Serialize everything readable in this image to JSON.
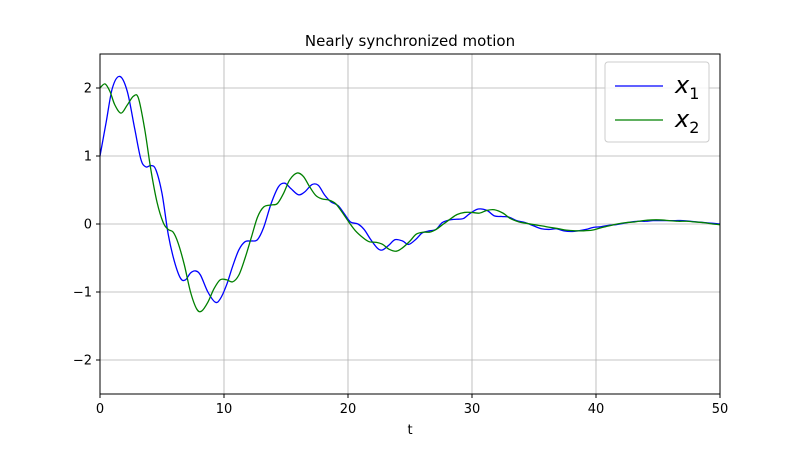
{
  "chart_data": {
    "type": "line",
    "title": "Nearly synchronized motion",
    "xlabel": "t",
    "ylabel": "",
    "xlim": [
      0,
      50
    ],
    "ylim": [
      -2.5,
      2.5
    ],
    "xticks": [
      0,
      10,
      20,
      30,
      40,
      50
    ],
    "xtick_labels": [
      "0",
      "10",
      "20",
      "30",
      "40",
      "50"
    ],
    "yticks": [
      -2,
      -1,
      0,
      1,
      2
    ],
    "ytick_labels": [
      "−2",
      "−1",
      "0",
      "1",
      "2"
    ],
    "grid": true,
    "legend_position": "top-right",
    "series": [
      {
        "name": "x",
        "subscript": "1",
        "color": "#0000ff",
        "points": [
          [
            0,
            1.0
          ],
          [
            0.5,
            1.5
          ],
          [
            1.0,
            2.0
          ],
          [
            1.6,
            2.17
          ],
          [
            2.2,
            1.95
          ],
          [
            2.8,
            1.4
          ],
          [
            3.3,
            0.95
          ],
          [
            3.7,
            0.84
          ],
          [
            4.1,
            0.86
          ],
          [
            4.5,
            0.8
          ],
          [
            5.0,
            0.45
          ],
          [
            5.5,
            -0.15
          ],
          [
            6.0,
            -0.55
          ],
          [
            6.5,
            -0.8
          ],
          [
            6.9,
            -0.82
          ],
          [
            7.3,
            -0.72
          ],
          [
            7.7,
            -0.69
          ],
          [
            8.1,
            -0.75
          ],
          [
            8.7,
            -1.0
          ],
          [
            9.3,
            -1.15
          ],
          [
            9.7,
            -1.1
          ],
          [
            10.2,
            -0.9
          ],
          [
            10.7,
            -0.62
          ],
          [
            11.2,
            -0.38
          ],
          [
            11.7,
            -0.26
          ],
          [
            12.2,
            -0.25
          ],
          [
            12.7,
            -0.23
          ],
          [
            13.2,
            -0.05
          ],
          [
            13.8,
            0.3
          ],
          [
            14.4,
            0.55
          ],
          [
            14.9,
            0.6
          ],
          [
            15.4,
            0.52
          ],
          [
            16.0,
            0.43
          ],
          [
            16.5,
            0.47
          ],
          [
            17.1,
            0.58
          ],
          [
            17.6,
            0.57
          ],
          [
            18.1,
            0.43
          ],
          [
            18.6,
            0.33
          ],
          [
            19.2,
            0.27
          ],
          [
            19.7,
            0.15
          ],
          [
            20.2,
            0.03
          ],
          [
            20.8,
            0.0
          ],
          [
            21.3,
            -0.08
          ],
          [
            21.8,
            -0.22
          ],
          [
            22.4,
            -0.36
          ],
          [
            22.8,
            -0.38
          ],
          [
            23.3,
            -0.31
          ],
          [
            23.8,
            -0.23
          ],
          [
            24.4,
            -0.25
          ],
          [
            24.9,
            -0.3
          ],
          [
            25.5,
            -0.22
          ],
          [
            26.0,
            -0.13
          ],
          [
            26.6,
            -0.1
          ],
          [
            27.1,
            -0.08
          ],
          [
            27.6,
            0.02
          ],
          [
            28.2,
            0.06
          ],
          [
            28.7,
            0.07
          ],
          [
            29.3,
            0.08
          ],
          [
            29.8,
            0.15
          ],
          [
            30.5,
            0.22
          ],
          [
            31.2,
            0.2
          ],
          [
            31.8,
            0.12
          ],
          [
            32.4,
            0.11
          ],
          [
            33.0,
            0.1
          ],
          [
            33.6,
            0.05
          ],
          [
            34.3,
            0.02
          ],
          [
            35.0,
            -0.03
          ],
          [
            35.6,
            -0.07
          ],
          [
            36.2,
            -0.08
          ],
          [
            36.8,
            -0.07
          ],
          [
            37.4,
            -0.1
          ],
          [
            38.0,
            -0.11
          ],
          [
            38.6,
            -0.1
          ],
          [
            39.2,
            -0.08
          ],
          [
            39.8,
            -0.05
          ],
          [
            40.4,
            -0.04
          ],
          [
            41.0,
            -0.02
          ],
          [
            41.6,
            -0.01
          ],
          [
            42.2,
            0.01
          ],
          [
            42.8,
            0.03
          ],
          [
            43.4,
            0.04
          ],
          [
            44.0,
            0.04
          ],
          [
            44.6,
            0.05
          ],
          [
            45.2,
            0.05
          ],
          [
            45.8,
            0.05
          ],
          [
            46.4,
            0.05
          ],
          [
            47.0,
            0.05
          ],
          [
            47.6,
            0.04
          ],
          [
            48.2,
            0.03
          ],
          [
            48.8,
            0.02
          ],
          [
            49.4,
            0.01
          ],
          [
            50.0,
            0.0
          ]
        ]
      },
      {
        "name": "x",
        "subscript": "2",
        "color": "#008000",
        "points": [
          [
            0,
            2.0
          ],
          [
            0.4,
            2.06
          ],
          [
            0.8,
            1.95
          ],
          [
            1.2,
            1.75
          ],
          [
            1.7,
            1.63
          ],
          [
            2.2,
            1.75
          ],
          [
            2.7,
            1.88
          ],
          [
            3.1,
            1.85
          ],
          [
            3.6,
            1.4
          ],
          [
            4.1,
            0.8
          ],
          [
            4.6,
            0.32
          ],
          [
            5.1,
            0.02
          ],
          [
            5.5,
            -0.08
          ],
          [
            5.9,
            -0.12
          ],
          [
            6.3,
            -0.28
          ],
          [
            6.8,
            -0.6
          ],
          [
            7.3,
            -1.0
          ],
          [
            7.8,
            -1.25
          ],
          [
            8.2,
            -1.28
          ],
          [
            8.7,
            -1.15
          ],
          [
            9.2,
            -0.95
          ],
          [
            9.7,
            -0.82
          ],
          [
            10.2,
            -0.82
          ],
          [
            10.7,
            -0.85
          ],
          [
            11.2,
            -0.75
          ],
          [
            11.7,
            -0.5
          ],
          [
            12.2,
            -0.2
          ],
          [
            12.7,
            0.1
          ],
          [
            13.2,
            0.25
          ],
          [
            13.8,
            0.28
          ],
          [
            14.3,
            0.3
          ],
          [
            14.8,
            0.45
          ],
          [
            15.3,
            0.65
          ],
          [
            15.9,
            0.75
          ],
          [
            16.4,
            0.7
          ],
          [
            16.9,
            0.55
          ],
          [
            17.4,
            0.42
          ],
          [
            17.9,
            0.37
          ],
          [
            18.5,
            0.35
          ],
          [
            19.0,
            0.3
          ],
          [
            19.5,
            0.18
          ],
          [
            20.1,
            0.02
          ],
          [
            20.6,
            -0.1
          ],
          [
            21.2,
            -0.2
          ],
          [
            21.7,
            -0.26
          ],
          [
            22.3,
            -0.27
          ],
          [
            22.8,
            -0.3
          ],
          [
            23.3,
            -0.37
          ],
          [
            23.9,
            -0.4
          ],
          [
            24.4,
            -0.35
          ],
          [
            25.0,
            -0.25
          ],
          [
            25.5,
            -0.15
          ],
          [
            26.1,
            -0.12
          ],
          [
            26.6,
            -0.12
          ],
          [
            27.1,
            -0.08
          ],
          [
            27.7,
            0.0
          ],
          [
            28.3,
            0.08
          ],
          [
            28.8,
            0.14
          ],
          [
            29.4,
            0.17
          ],
          [
            30.0,
            0.17
          ],
          [
            30.6,
            0.16
          ],
          [
            31.2,
            0.2
          ],
          [
            31.8,
            0.21
          ],
          [
            32.5,
            0.16
          ],
          [
            33.1,
            0.08
          ],
          [
            33.8,
            0.03
          ],
          [
            34.4,
            0.01
          ],
          [
            35.0,
            -0.01
          ],
          [
            35.7,
            -0.03
          ],
          [
            36.3,
            -0.05
          ],
          [
            37.0,
            -0.07
          ],
          [
            37.6,
            -0.09
          ],
          [
            38.3,
            -0.1
          ],
          [
            39.0,
            -0.1
          ],
          [
            39.7,
            -0.09
          ],
          [
            40.3,
            -0.06
          ],
          [
            41.0,
            -0.03
          ],
          [
            41.7,
            0.0
          ],
          [
            42.4,
            0.02
          ],
          [
            43.1,
            0.03
          ],
          [
            43.8,
            0.05
          ],
          [
            44.5,
            0.06
          ],
          [
            45.2,
            0.06
          ],
          [
            45.9,
            0.05
          ],
          [
            46.6,
            0.04
          ],
          [
            47.3,
            0.04
          ],
          [
            48.0,
            0.03
          ],
          [
            48.7,
            0.02
          ],
          [
            49.4,
            0.0
          ],
          [
            50.0,
            -0.01
          ]
        ]
      }
    ]
  }
}
